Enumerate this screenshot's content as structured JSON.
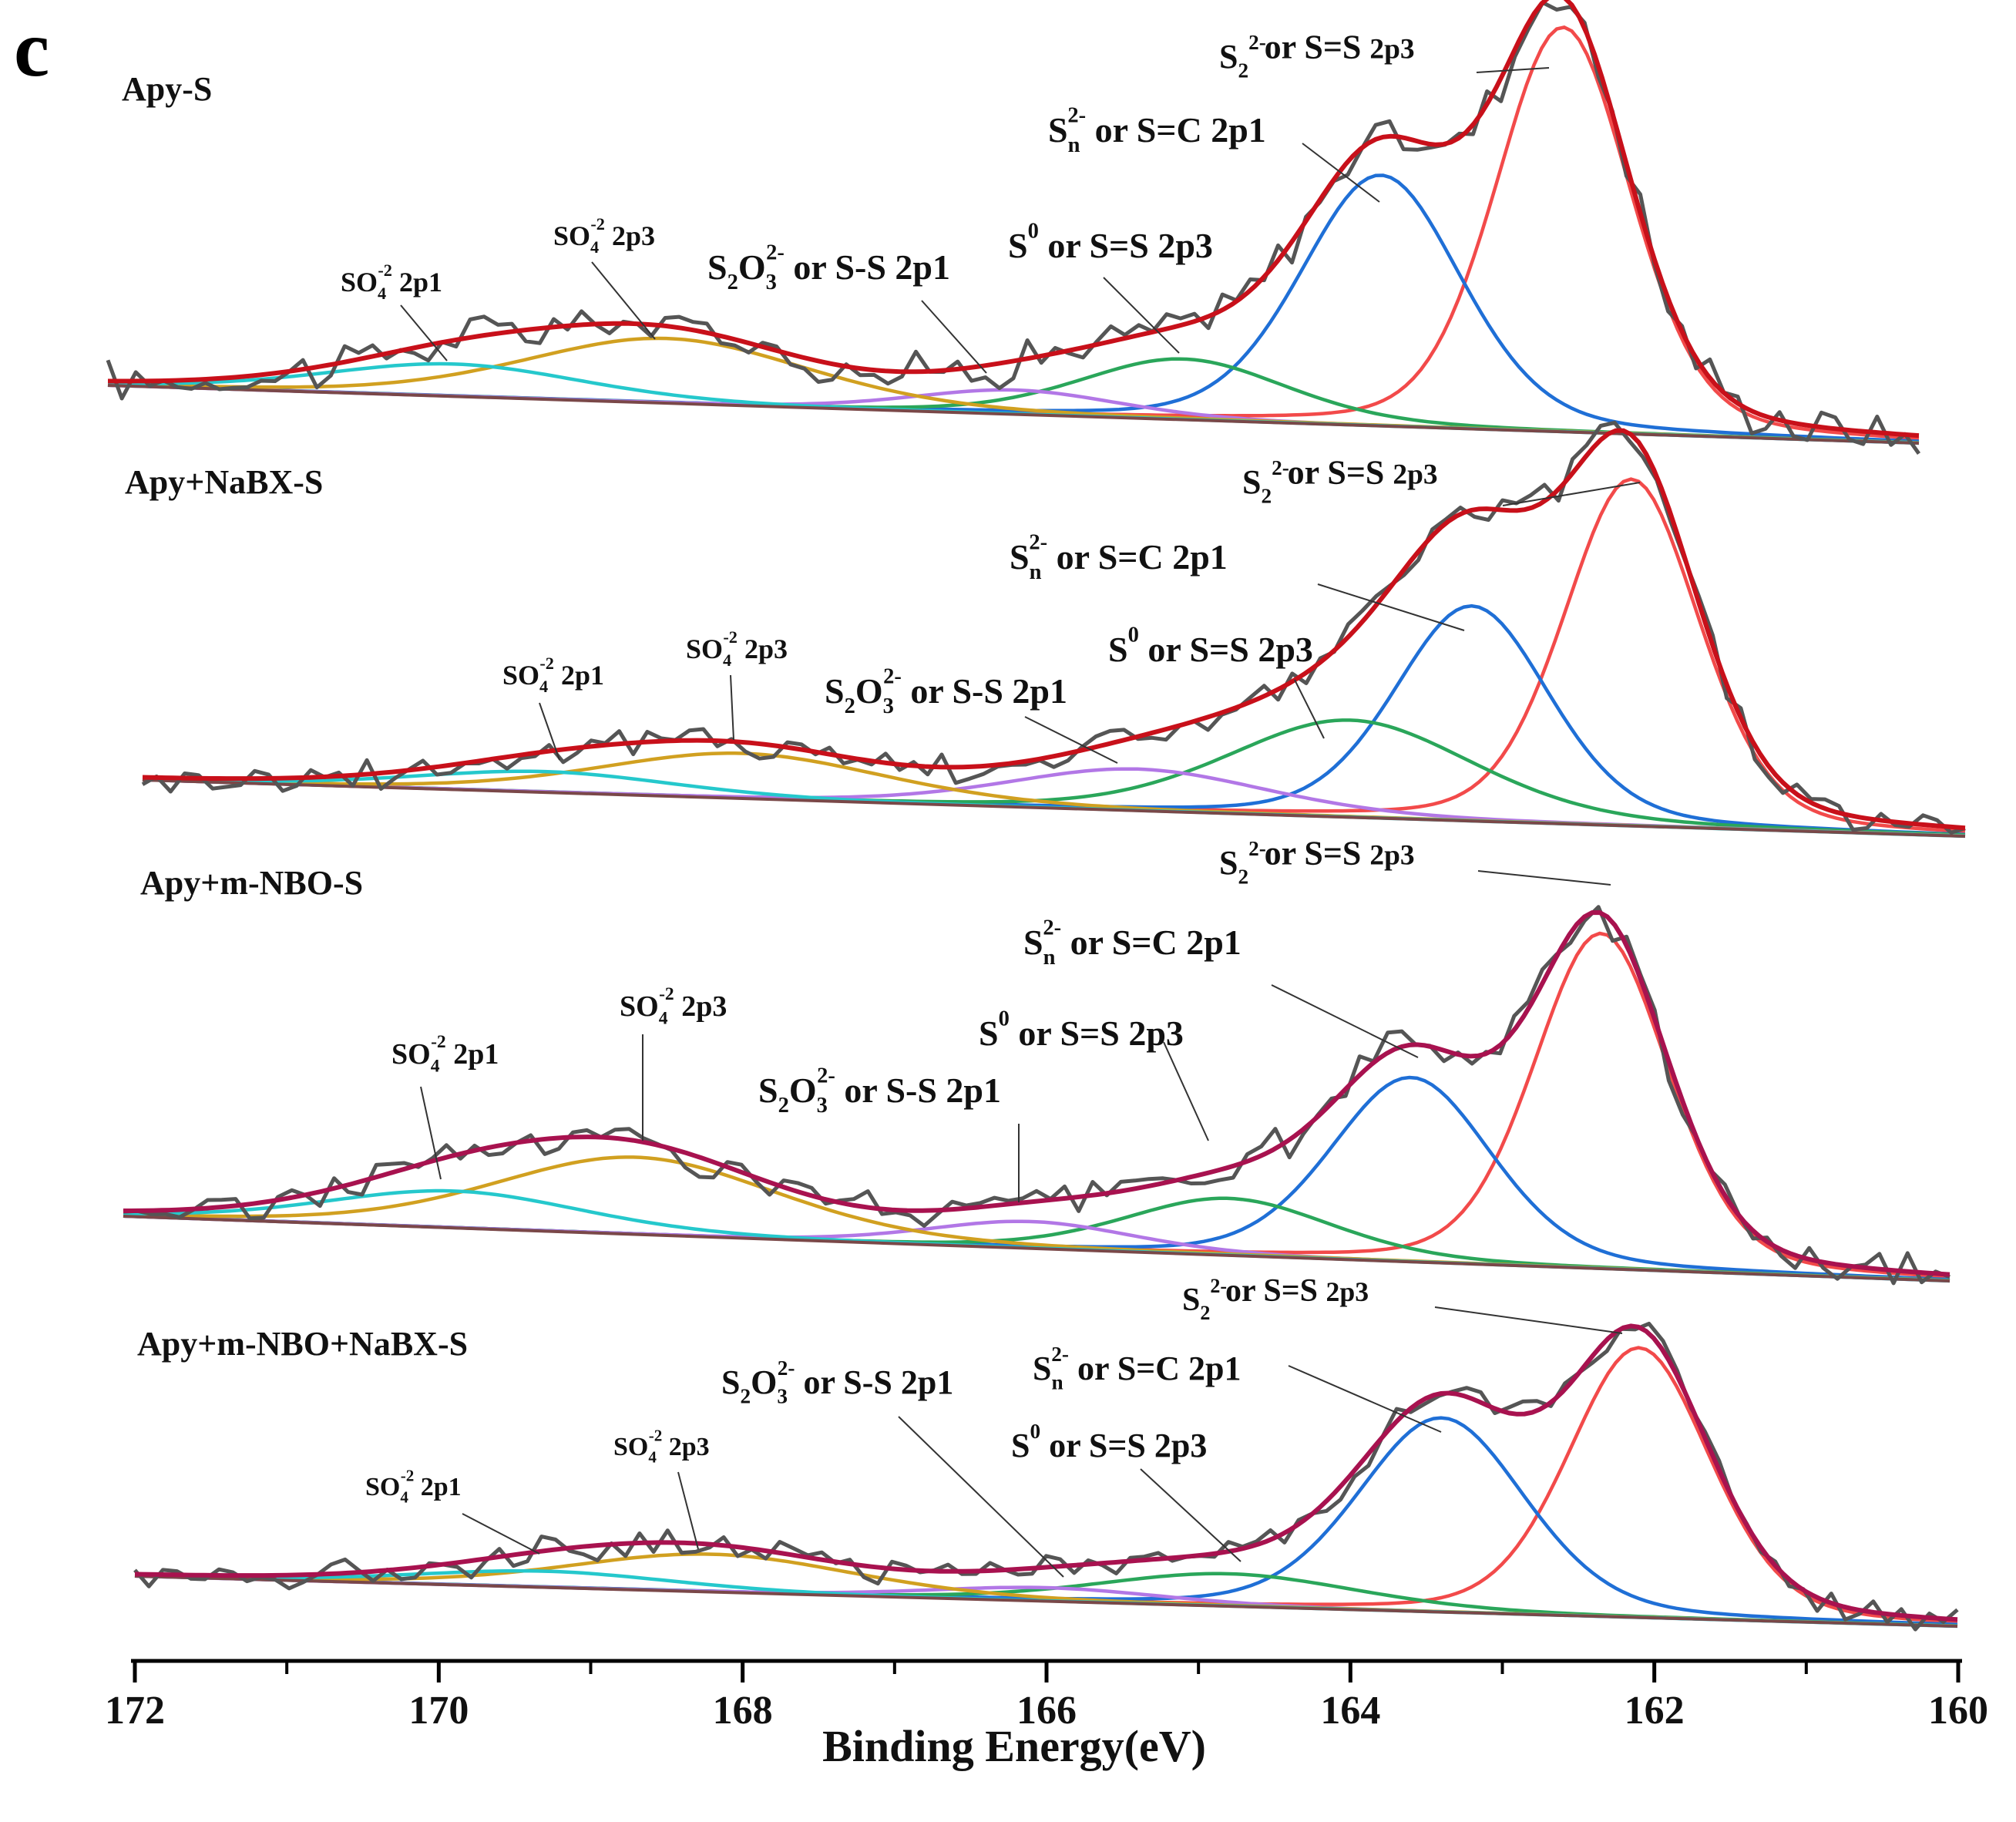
{
  "chart_data": {
    "type": "line",
    "panel_letter": "c",
    "xlabel": "Binding Energy(eV)",
    "xlim": [
      172,
      160
    ],
    "x_reversed": true,
    "xticks": [
      172,
      170,
      168,
      166,
      164,
      162,
      160
    ],
    "tick_labels": [
      "172",
      "170",
      "168",
      "166",
      "164",
      "162",
      "160"
    ],
    "colors": {
      "raw": "#555555",
      "envelope_1": "#c8101a",
      "envelope_2": "#c8101a",
      "envelope_3": "#a8124f",
      "envelope_4": "#a8124f",
      "background": "#7a4848",
      "S2_2p3": "#f24a4a",
      "Sn_2p1": "#1f6fd6",
      "S0_2p3": "#2aa65a",
      "S2O3_2p1": "#b277e6",
      "SO4_2p3": "#d1a020",
      "SO4_2p1": "#25c8cc"
    },
    "label_parts": {
      "S2_base": "S",
      "S2_sub": "2",
      "S2_sup": "2-",
      "S2_rest": "or S=S",
      "S2_tail": "2p3",
      "Sn_base": "S",
      "Sn_sub": "n",
      "Sn_sup": "2-",
      "Sn_rest": "or S=C 2p1",
      "S0_base": "S",
      "S0_sup": "0",
      "S0_rest": "or S=S 2p3",
      "S2O3_base": "S",
      "S2O3_sub1": "2",
      "S2O3_mid": "O",
      "S2O3_sub2": "3",
      "S2O3_sup": "2-",
      "S2O3_rest": "or S-S 2p1",
      "SO4_base": "SO",
      "SO4_sub": "4",
      "SO4_sup": "-2",
      "SO4_tail3": "2p3",
      "SO4_tail1": "2p1"
    },
    "panels": [
      {
        "name": "Apy-S",
        "background": [
          0.0,
          0.0
        ],
        "components": [
          {
            "label": "S2_2p3",
            "center": 162.6,
            "height": 1.0,
            "fwhm": 1.05
          },
          {
            "label": "Sn_2p1",
            "center": 163.8,
            "height": 0.62,
            "fwhm": 1.25
          },
          {
            "label": "S0_2p3",
            "center": 165.1,
            "height": 0.15,
            "fwhm": 1.6
          },
          {
            "label": "S2O3_2p1",
            "center": 166.2,
            "height": 0.06,
            "fwhm": 1.6
          },
          {
            "label": "SO4_2p3",
            "center": 168.5,
            "height": 0.16,
            "fwhm": 2.2
          },
          {
            "label": "SO4_2p1",
            "center": 169.9,
            "height": 0.08,
            "fwhm": 2.0
          }
        ]
      },
      {
        "name": "Apy+NaBX-S",
        "background": [
          0.0,
          0.0
        ],
        "components": [
          {
            "label": "S2_2p3",
            "center": 162.15,
            "height": 1.0,
            "fwhm": 1.05
          },
          {
            "label": "Sn_2p1",
            "center": 163.2,
            "height": 0.62,
            "fwhm": 1.2
          },
          {
            "label": "S0_2p3",
            "center": 164.0,
            "height": 0.28,
            "fwhm": 1.9
          },
          {
            "label": "S2O3_2p1",
            "center": 165.4,
            "height": 0.12,
            "fwhm": 2.0
          },
          {
            "label": "SO4_2p3",
            "center": 168.0,
            "height": 0.13,
            "fwhm": 2.2
          },
          {
            "label": "SO4_2p1",
            "center": 169.3,
            "height": 0.06,
            "fwhm": 2.0
          }
        ]
      },
      {
        "name": "Apy+m-NBO-S",
        "background": [
          0.0,
          0.0
        ],
        "components": [
          {
            "label": "S2_2p3",
            "center": 162.35,
            "height": 1.0,
            "fwhm": 1.05
          },
          {
            "label": "Sn_2p1",
            "center": 163.6,
            "height": 0.55,
            "fwhm": 1.25
          },
          {
            "label": "S0_2p3",
            "center": 164.8,
            "height": 0.17,
            "fwhm": 1.6
          },
          {
            "label": "S2O3_2p1",
            "center": 166.1,
            "height": 0.08,
            "fwhm": 1.6
          },
          {
            "label": "SO4_2p3",
            "center": 168.7,
            "height": 0.23,
            "fwhm": 2.2
          },
          {
            "label": "SO4_2p1",
            "center": 169.9,
            "height": 0.11,
            "fwhm": 2.0
          }
        ]
      },
      {
        "name": "Apy+m-NBO+NaBX-S",
        "background": [
          0.0,
          0.0
        ],
        "components": [
          {
            "label": "S2_2p3",
            "center": 162.1,
            "height": 1.0,
            "fwhm": 1.1
          },
          {
            "label": "Sn_2p1",
            "center": 163.4,
            "height": 0.72,
            "fwhm": 1.3
          },
          {
            "label": "S0_2p3",
            "center": 164.8,
            "height": 0.12,
            "fwhm": 2.0
          },
          {
            "label": "S2O3_2p1",
            "center": 166.0,
            "height": 0.05,
            "fwhm": 1.8
          },
          {
            "label": "SO4_2p3",
            "center": 168.2,
            "height": 0.14,
            "fwhm": 2.2
          },
          {
            "label": "SO4_2p1",
            "center": 169.3,
            "height": 0.06,
            "fwhm": 2.0
          }
        ]
      }
    ]
  }
}
